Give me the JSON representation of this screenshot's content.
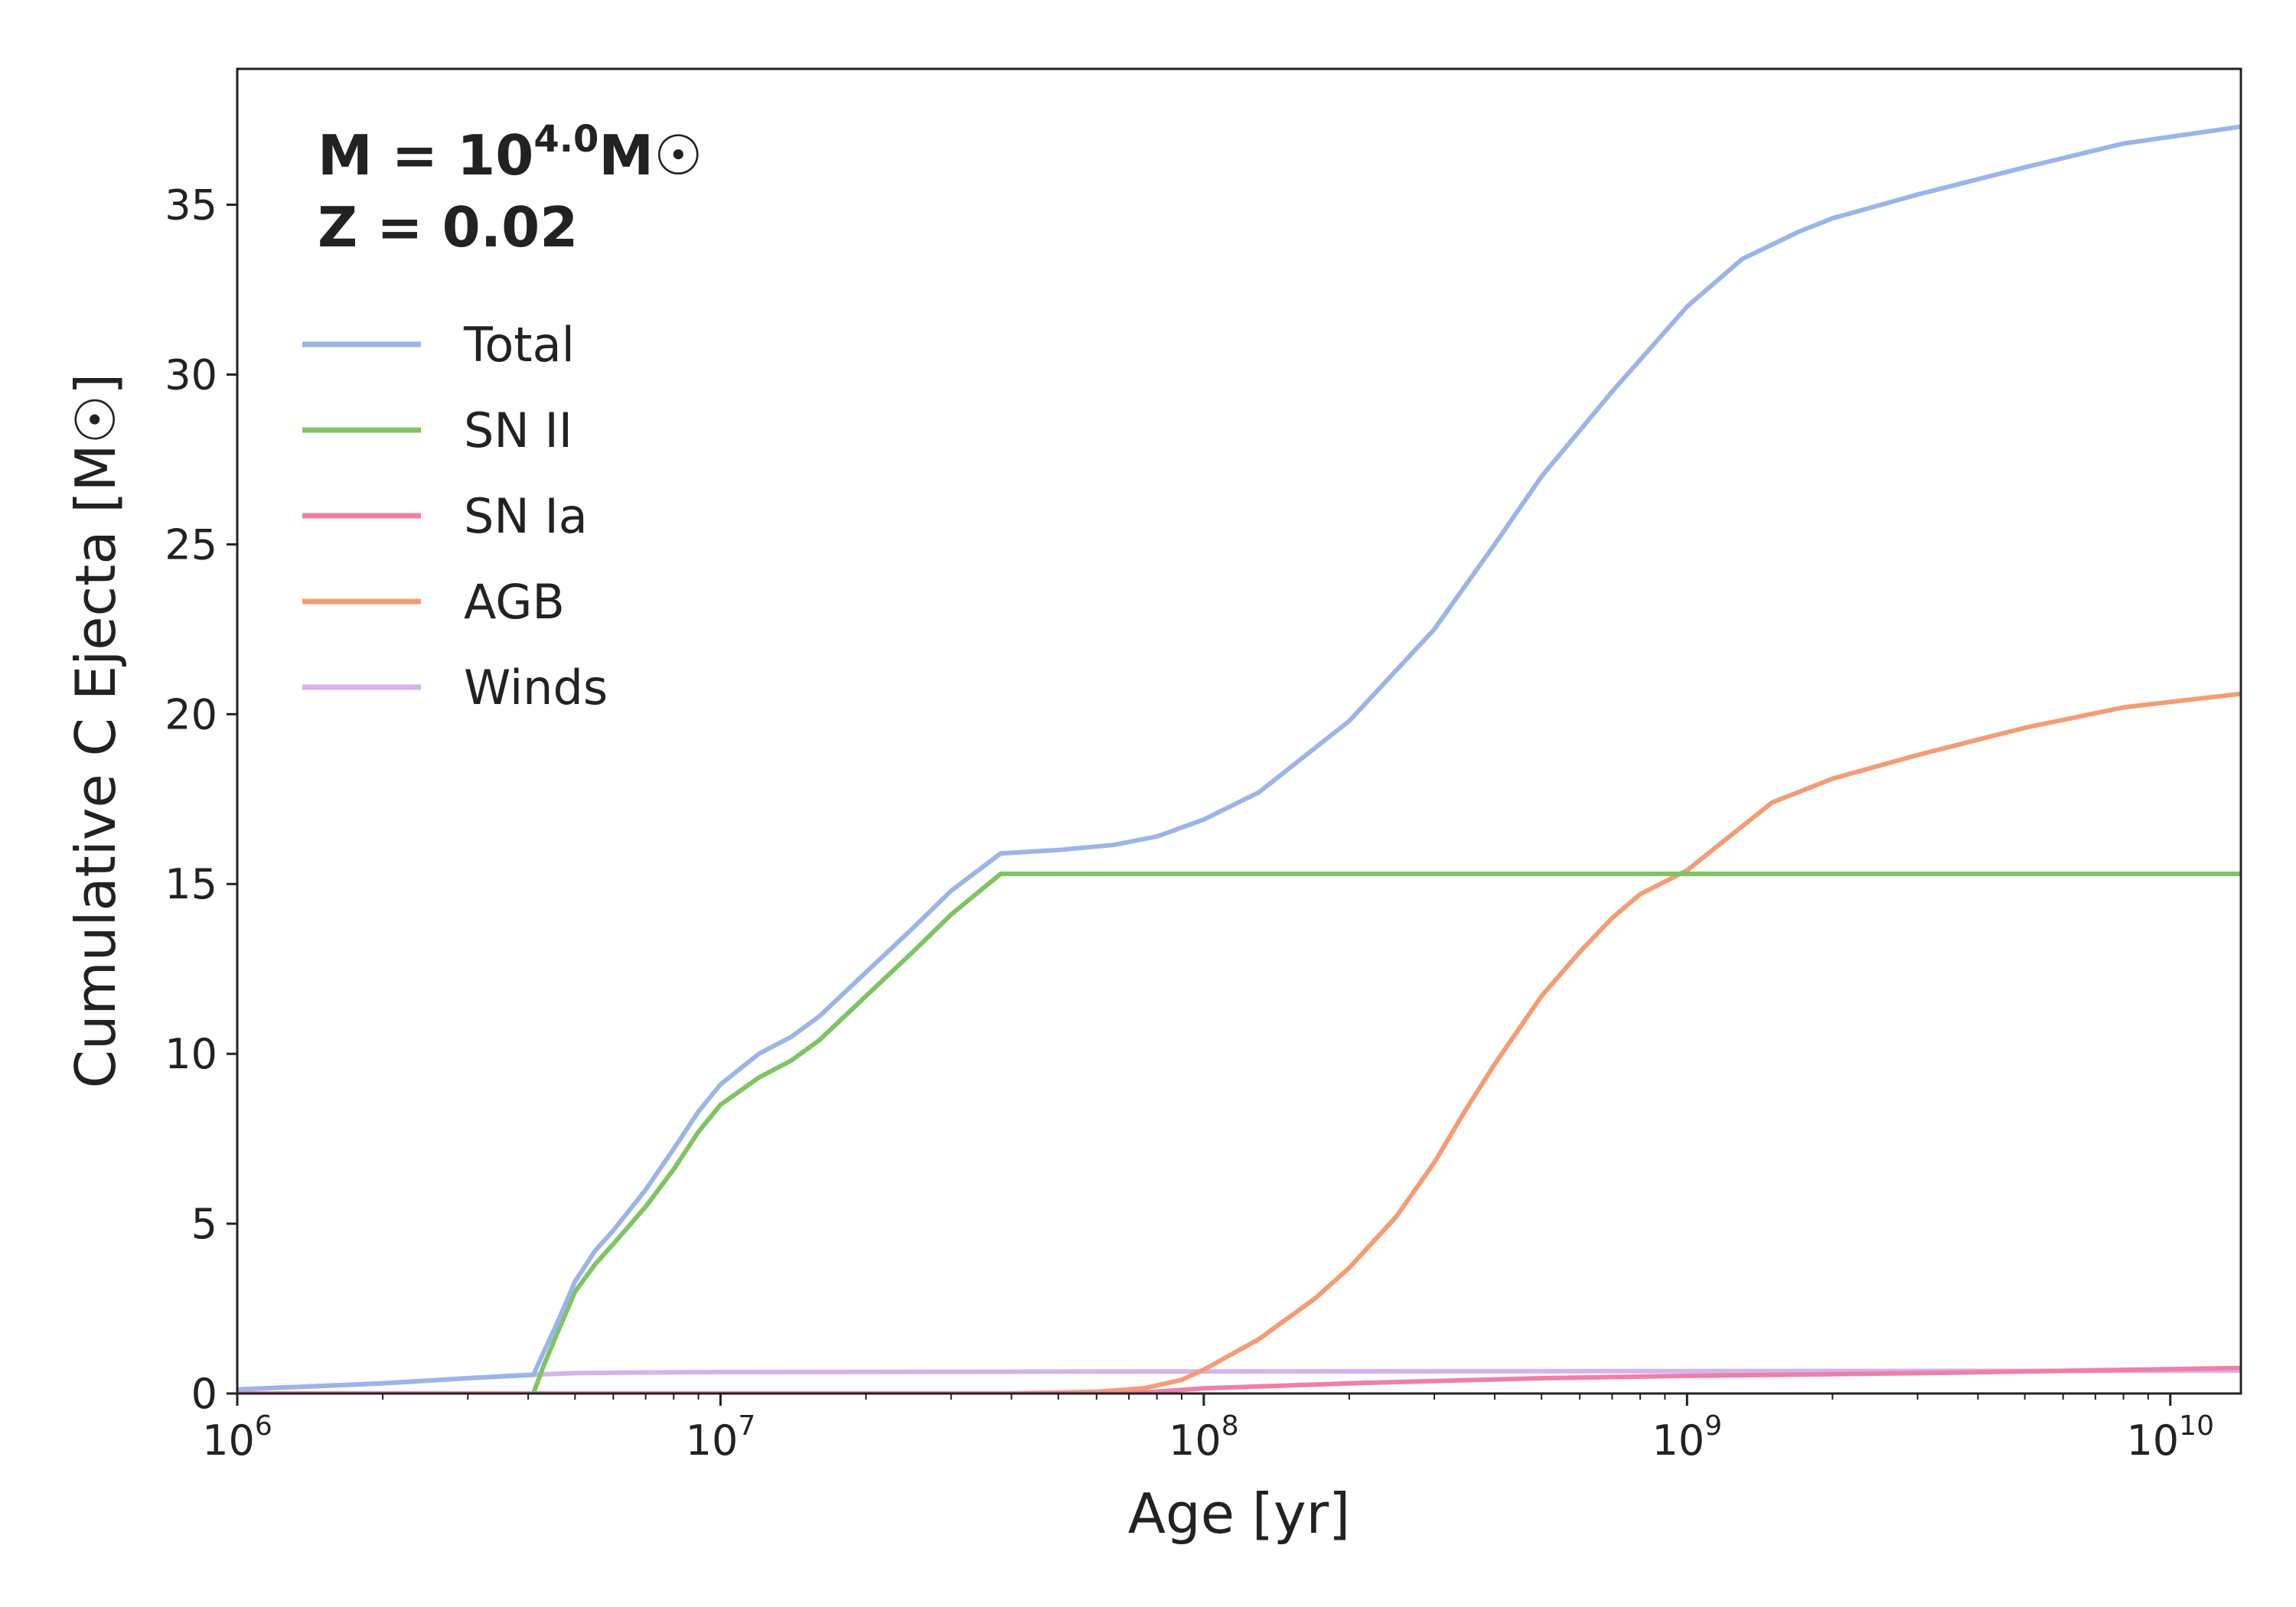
{
  "chart_data": {
    "type": "line",
    "xlabel": "Age [yr]",
    "ylabel": "Cumulative C Ejecta [M☉]",
    "x_scale": "log",
    "xlim": [
      1000000,
      14000000000
    ],
    "ylim": [
      0,
      39
    ],
    "grid": false,
    "legend_position": "top-left",
    "annotations": [
      {
        "base": "M = 10",
        "exponent": "4.0",
        "suffix": "M☉"
      },
      {
        "text": "Z = 0.02"
      }
    ],
    "x_ticks": [
      {
        "value": 1000000,
        "base": "10",
        "exp": "6"
      },
      {
        "value": 10000000,
        "base": "10",
        "exp": "7"
      },
      {
        "value": 100000000,
        "base": "10",
        "exp": "8"
      },
      {
        "value": 1000000000,
        "base": "10",
        "exp": "9"
      },
      {
        "value": 10000000000,
        "base": "10",
        "exp": "10"
      }
    ],
    "y_ticks": [
      {
        "value": 0,
        "label": "0"
      },
      {
        "value": 5,
        "label": "5"
      },
      {
        "value": 10,
        "label": "10"
      },
      {
        "value": 15,
        "label": "15"
      },
      {
        "value": 20,
        "label": "20"
      },
      {
        "value": 25,
        "label": "25"
      },
      {
        "value": 30,
        "label": "30"
      },
      {
        "value": 35,
        "label": "35"
      }
    ],
    "series": [
      {
        "name": "Total",
        "color": "#9bb5ea",
        "points": [
          [
            1000000,
            0.12
          ],
          [
            2000000,
            0.3
          ],
          [
            3000000,
            0.45
          ],
          [
            4100000,
            0.55
          ],
          [
            4300000,
            1.2
          ],
          [
            4600000,
            2.1
          ],
          [
            5000000,
            3.3
          ],
          [
            5500000,
            4.2
          ],
          [
            6000000,
            4.8
          ],
          [
            7000000,
            6.0
          ],
          [
            8000000,
            7.2
          ],
          [
            9000000,
            8.3
          ],
          [
            10000000,
            9.1
          ],
          [
            12000000,
            10.0
          ],
          [
            14000000,
            10.5
          ],
          [
            16000000,
            11.1
          ],
          [
            20000000,
            12.4
          ],
          [
            25000000,
            13.7
          ],
          [
            30000000,
            14.8
          ],
          [
            38000000,
            15.9
          ],
          [
            50000000,
            16.0
          ],
          [
            65000000,
            16.15
          ],
          [
            80000000,
            16.4
          ],
          [
            100000000,
            16.9
          ],
          [
            130000000,
            17.7
          ],
          [
            200000000,
            19.8
          ],
          [
            300000000,
            22.5
          ],
          [
            400000000,
            25.0
          ],
          [
            500000000,
            27.0
          ],
          [
            700000000,
            29.5
          ],
          [
            1000000000,
            32.0
          ],
          [
            1300000000,
            33.4
          ],
          [
            1700000000,
            34.2
          ],
          [
            2000000000,
            34.6
          ],
          [
            3000000000,
            35.3
          ],
          [
            5000000000,
            36.1
          ],
          [
            8000000000,
            36.8
          ],
          [
            14000000000,
            37.3
          ]
        ]
      },
      {
        "name": "SN II",
        "color": "#7fc462",
        "points": [
          [
            4100000,
            0
          ],
          [
            4300000,
            0.8
          ],
          [
            4600000,
            1.8
          ],
          [
            5000000,
            3.0
          ],
          [
            5500000,
            3.8
          ],
          [
            6000000,
            4.4
          ],
          [
            7000000,
            5.5
          ],
          [
            8000000,
            6.6
          ],
          [
            9000000,
            7.7
          ],
          [
            10000000,
            8.5
          ],
          [
            12000000,
            9.3
          ],
          [
            14000000,
            9.8
          ],
          [
            16000000,
            10.4
          ],
          [
            20000000,
            11.7
          ],
          [
            25000000,
            13.0
          ],
          [
            30000000,
            14.1
          ],
          [
            38000000,
            15.3
          ],
          [
            14000000000,
            15.3
          ]
        ]
      },
      {
        "name": "SN Ia",
        "color": "#f07fa8",
        "points": [
          [
            1000000,
            0
          ],
          [
            70000000,
            0
          ],
          [
            100000000,
            0.15
          ],
          [
            200000000,
            0.3
          ],
          [
            500000000,
            0.45
          ],
          [
            1000000000,
            0.52
          ],
          [
            3000000000,
            0.6
          ],
          [
            14000000000,
            0.75
          ]
        ]
      },
      {
        "name": "AGB",
        "color": "#f59c74",
        "points": [
          [
            1000000,
            0
          ],
          [
            40000000,
            0
          ],
          [
            60000000,
            0.05
          ],
          [
            75000000,
            0.15
          ],
          [
            90000000,
            0.4
          ],
          [
            100000000,
            0.7
          ],
          [
            130000000,
            1.6
          ],
          [
            170000000,
            2.8
          ],
          [
            200000000,
            3.7
          ],
          [
            250000000,
            5.2
          ],
          [
            300000000,
            6.8
          ],
          [
            350000000,
            8.4
          ],
          [
            400000000,
            9.7
          ],
          [
            500000000,
            11.7
          ],
          [
            600000000,
            13.0
          ],
          [
            700000000,
            14.0
          ],
          [
            800000000,
            14.7
          ],
          [
            1000000000,
            15.4
          ],
          [
            1200000000,
            16.3
          ],
          [
            1500000000,
            17.4
          ],
          [
            2000000000,
            18.1
          ],
          [
            3000000000,
            18.8
          ],
          [
            5000000000,
            19.6
          ],
          [
            8000000000,
            20.2
          ],
          [
            14000000000,
            20.6
          ]
        ]
      },
      {
        "name": "Winds",
        "color": "#d4b3ee",
        "points": [
          [
            1000000,
            0.12
          ],
          [
            2000000,
            0.3
          ],
          [
            3000000,
            0.45
          ],
          [
            4000000,
            0.55
          ],
          [
            5000000,
            0.6
          ],
          [
            7000000,
            0.62
          ],
          [
            10000000,
            0.63
          ],
          [
            100000000,
            0.65
          ],
          [
            1000000000,
            0.66
          ],
          [
            14000000000,
            0.67
          ]
        ]
      }
    ]
  }
}
